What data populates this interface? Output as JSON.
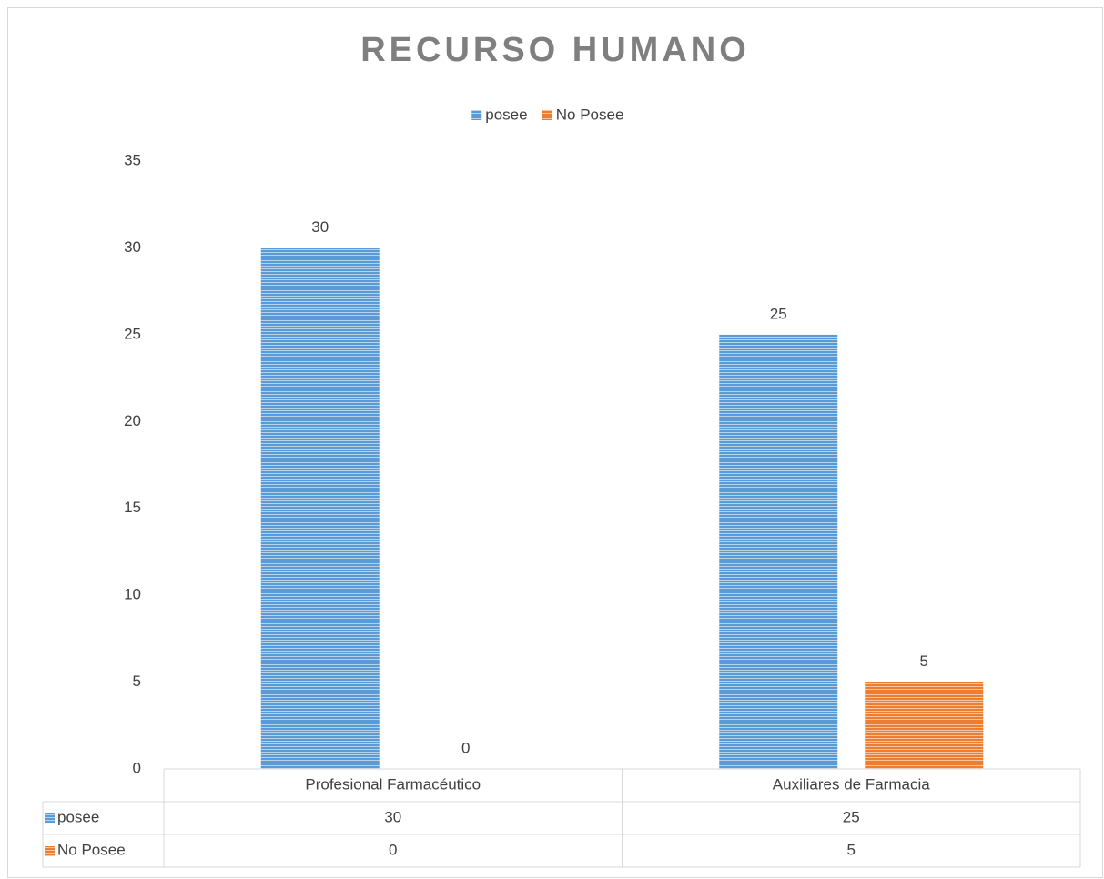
{
  "chart_data": {
    "type": "bar",
    "title": "RECURSO HUMANO",
    "categories": [
      "Profesional Farmacéutico",
      "Auxiliares de Farmacia"
    ],
    "series": [
      {
        "name": "posee",
        "color": "#5b9bd5",
        "values": [
          30,
          25
        ]
      },
      {
        "name": "No Posee",
        "color": "#ed7d31",
        "values": [
          0,
          5
        ]
      }
    ],
    "ylim": [
      0,
      35
    ],
    "yticks": [
      0,
      5,
      10,
      15,
      20,
      25,
      30,
      35
    ],
    "grid": false,
    "legend": "top",
    "data_table": true
  }
}
